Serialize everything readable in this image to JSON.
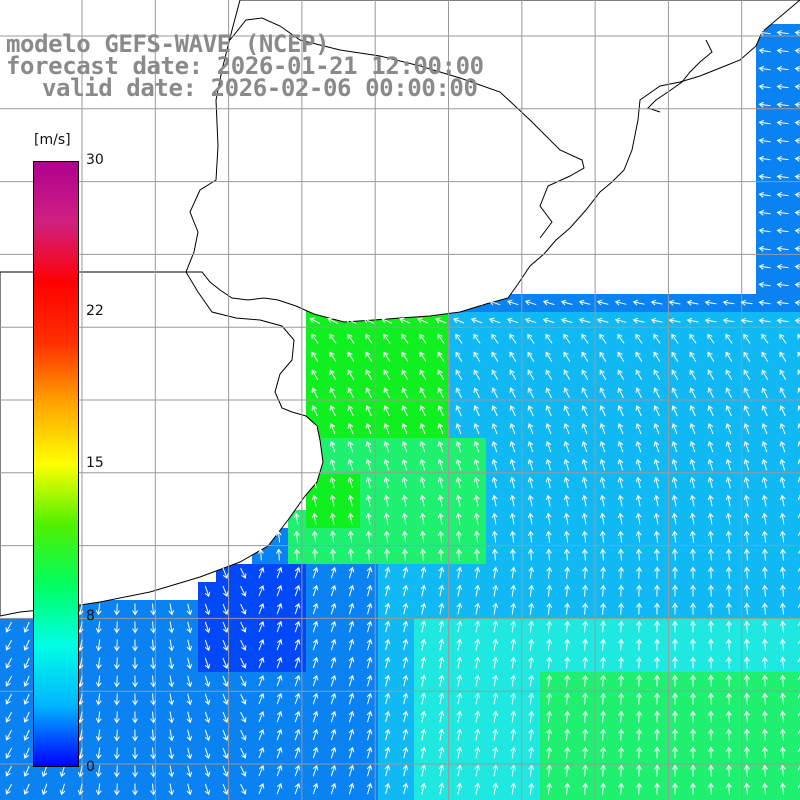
{
  "title": {
    "line1": "modelo GEFS-WAVE (NCEP)",
    "line2": "forecast date: 2026-01-21 12:00:00",
    "line3": "valid date: 2026-02-06 00:00:00"
  },
  "colorbar": {
    "unit": "[m/s]",
    "ticks": [
      "30",
      "22",
      "15",
      "8",
      "0"
    ],
    "range": [
      0,
      30
    ],
    "colors": [
      "#0000ff",
      "#00b4ff",
      "#00ffe6",
      "#00ff60",
      "#50f000",
      "#ffff00",
      "#ffa500",
      "#ff3000",
      "#ff0000",
      "#d02080",
      "#b00090"
    ]
  },
  "map": {
    "land_color": "#ffffff",
    "coast_color": "#000000",
    "grid_color": "#9a9a9a",
    "arrow_color": "#ffffff",
    "field_colors": {
      "calm": "#0048f8",
      "low": "#0a82f2",
      "mid": "#10b8f4",
      "cyan": "#1ee8e0",
      "green": "#20f070",
      "bright_green": "#10f020"
    }
  }
}
